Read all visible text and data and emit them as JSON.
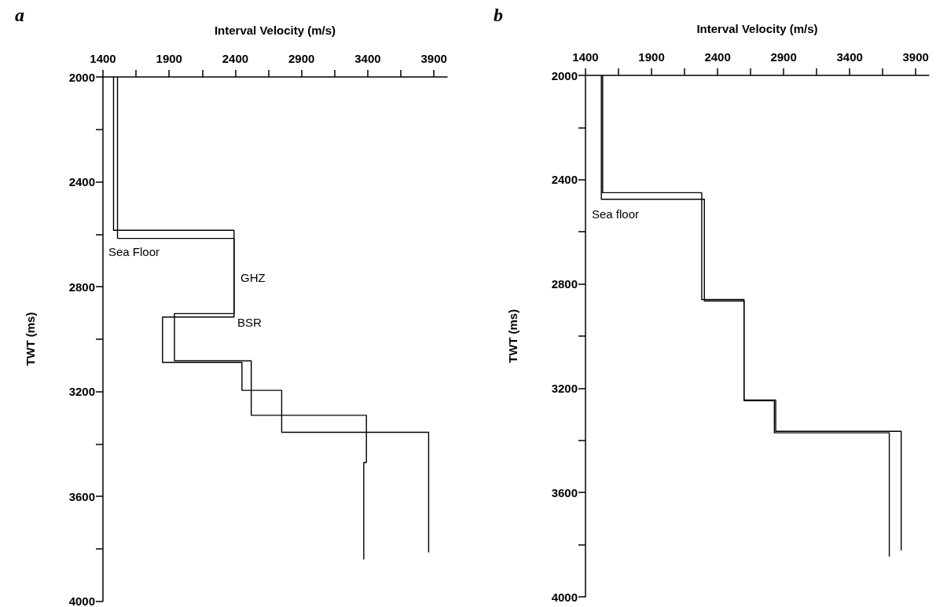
{
  "chart_data": [
    {
      "type": "line",
      "title": "a",
      "xlabel": "Interval Velocity (m/s)",
      "ylabel": "TWT (ms)",
      "xlim": [
        1400,
        4000
      ],
      "xticks": [
        1400,
        {
          "value": 1650,
          "label": null
        },
        1900,
        {
          "value": 2150,
          "label": null
        },
        2400,
        {
          "value": 2650,
          "label": null
        },
        2900,
        {
          "value": 3150,
          "label": null
        },
        3400,
        {
          "value": 3650,
          "label": null
        },
        3900
      ],
      "ylim": [
        4000,
        2000
      ],
      "yticks": [
        2000,
        {
          "value": 2200,
          "label": null
        },
        2400,
        {
          "value": 2600,
          "label": null
        },
        2800,
        {
          "value": 3000,
          "label": null
        },
        3200,
        {
          "value": 3400,
          "label": null
        },
        3600,
        {
          "value": 3800,
          "label": null
        },
        4000
      ],
      "series": [
        {
          "color": "#000000",
          "x": [
            1480,
            1480,
            2390,
            2390,
            1940,
            1940,
            2520,
            2520,
            3390,
            3390,
            3370,
            3370
          ],
          "values": [
            2000,
            2585,
            2585,
            2903,
            2903,
            3083,
            3083,
            3291,
            3291,
            3471,
            3471,
            3841
          ]
        },
        {
          "color": "#000000",
          "x": [
            1510,
            1510,
            2390,
            2390,
            1850,
            1850,
            2450,
            2450,
            2750,
            2750,
            3860,
            3860
          ],
          "values": [
            2000,
            2616,
            2616,
            2916,
            2916,
            3089,
            3089,
            3196,
            3196,
            3356,
            3356,
            3814
          ]
        }
      ],
      "annotations": [
        "Sea Floor",
        "GHZ",
        "BSR"
      ]
    },
    {
      "type": "line",
      "title": "b",
      "xlabel": "Interval Velocity (m/s)",
      "ylabel": "TWT (ms)",
      "xlim": [
        1400,
        4000
      ],
      "xticks": [
        1400,
        {
          "value": 1650,
          "label": null
        },
        1900,
        {
          "value": 2150,
          "label": null
        },
        2400,
        {
          "value": 2650,
          "label": null
        },
        2900,
        {
          "value": 3150,
          "label": null
        },
        3400,
        {
          "value": 3650,
          "label": null
        },
        3900
      ],
      "ylim": [
        4000,
        2000
      ],
      "yticks": [
        2000,
        {
          "value": 2200,
          "label": null
        },
        2400,
        {
          "value": 2600,
          "label": null
        },
        2800,
        {
          "value": 3000,
          "label": null
        },
        3200,
        {
          "value": 3400,
          "label": null
        },
        3600,
        {
          "value": 3800,
          "label": null
        },
        4000
      ],
      "series": [
        {
          "color": "#000000",
          "x": [
            1530,
            1530,
            2280,
            2280,
            2600,
            2600,
            2840,
            2840,
            3790,
            3790
          ],
          "values": [
            2000,
            2450,
            2450,
            2860,
            2860,
            3245,
            3245,
            3365,
            3365,
            3822
          ]
        },
        {
          "color": "#000000",
          "x": [
            1520,
            1520,
            2300,
            2300,
            2600,
            2600,
            2830,
            2830,
            3700,
            3700
          ],
          "values": [
            2000,
            2475,
            2475,
            2865,
            2865,
            3248,
            3248,
            3371,
            3371,
            3846
          ]
        }
      ],
      "annotations": [
        "Sea floor"
      ]
    }
  ]
}
